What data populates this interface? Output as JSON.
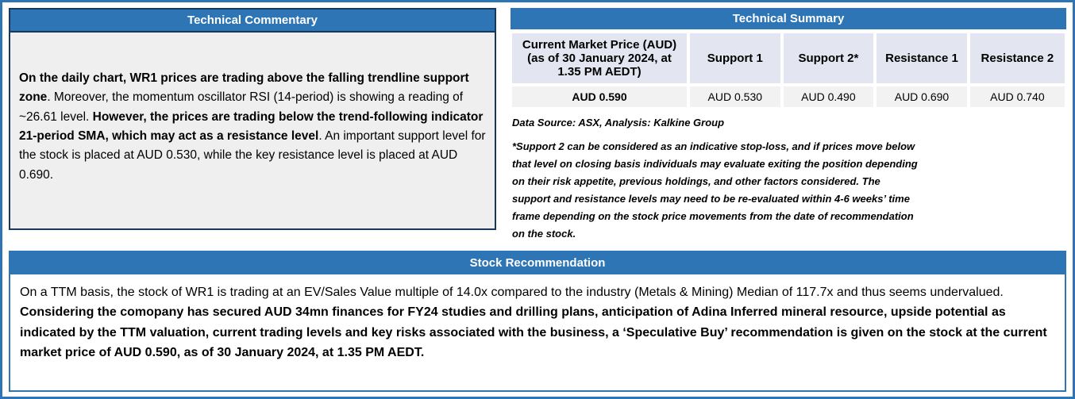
{
  "colors": {
    "accent_blue": "#2E75B6",
    "dark_border": "#17375D",
    "panel_bg": "#EFEFEF",
    "table_header_bg": "#E3E5F1",
    "table_row_bg": "#F2F2F2"
  },
  "technical_commentary": {
    "title": "Technical Commentary",
    "paragraph": [
      {
        "t": "On the daily chart, WR1 prices are trading above the falling trendline support zone",
        "b": true
      },
      {
        "t": ". Moreover, the momentum oscillator RSI (14-period) is showing a reading of ~26.61 level. ",
        "b": false
      },
      {
        "t": "However, the prices are trading below the trend-following indicator 21-period SMA, which may act as a resistance level",
        "b": true
      },
      {
        "t": ". An important support level for the stock is placed at AUD 0.530, while the key resistance level is placed at AUD 0.690.",
        "b": false
      }
    ]
  },
  "technical_summary": {
    "title": "Technical Summary",
    "headers": [
      "Current Market Price (AUD) (as of 30 January 2024, at 1.35 PM AEDT)",
      "Support 1",
      "Support 2*",
      "Resistance 1",
      "Resistance 2"
    ],
    "values": [
      "AUD 0.590",
      "AUD 0.530",
      "AUD 0.490",
      "AUD 0.690",
      "AUD 0.740"
    ],
    "source_note": "Data Source: ASX, Analysis: Kalkine Group",
    "footnote": "*Support 2 can be considered as an indicative stop-loss, and if prices move below that level on closing basis individuals may evaluate exiting the position depending on their risk appetite, previous holdings, and other factors considered. The support and resistance levels may need to be re-evaluated within 4-6 weeks’ time frame depending on the stock price movements from the date of recommendation on the stock."
  },
  "stock_recommendation": {
    "title": "Stock Recommendation",
    "paragraph": [
      {
        "t": "On a TTM basis, the stock of WR1 is trading at an EV/Sales Value multiple of 14.0x compared to the industry (Metals & Mining) Median of 117.7x and thus seems undervalued. ",
        "b": false
      },
      {
        "t": "Considering the comopany has secured AUD 34mn finances for FY24 studies and drilling plans, anticipation of Adina Inferred mineral resource, upside potential as indicated by the TTM valuation, current trading levels and key risks associated with the business, a ‘Speculative Buy’ recommendation is given on the stock at the current market price of AUD 0.590, as of 30 January 2024, at 1.35 PM AEDT.",
        "b": true
      }
    ]
  }
}
